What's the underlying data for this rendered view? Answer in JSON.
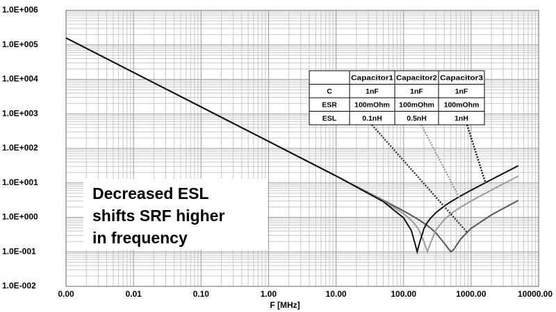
{
  "chart_data": {
    "type": "line",
    "x_label": "F [MHz]",
    "log_x": true,
    "log_y": true,
    "grid": true,
    "minor_grid": true,
    "xlim": [
      0.001,
      10000
    ],
    "ylim": [
      0.01,
      1000000
    ],
    "xticks": [
      {
        "value": 0.001,
        "label": "0.00"
      },
      0.01,
      {
        "value": 0.1,
        "label": "0.10"
      },
      {
        "value": 1,
        "label": "1.00"
      },
      {
        "value": 10,
        "label": "10.00"
      },
      {
        "value": 100,
        "label": "100.00"
      },
      {
        "value": 1000,
        "label": "1000.00"
      },
      {
        "value": 10000,
        "label": "10000.00"
      }
    ],
    "yticks": [
      {
        "value": 0.01,
        "label": "1.0E-002"
      },
      {
        "value": 0.1,
        "label": "1.0E-001"
      },
      {
        "value": 1,
        "label": "1.0E+000"
      },
      {
        "value": 10,
        "label": "1.0E+001"
      },
      {
        "value": 100,
        "label": "1.0E+002"
      },
      {
        "value": 1000,
        "label": "1.0E+003"
      },
      {
        "value": 10000,
        "label": "1.0E+004"
      },
      {
        "value": 100000,
        "label": "1.0E+005"
      },
      {
        "value": 1000000,
        "label": "1.0E+006"
      }
    ],
    "x": [
      0.001,
      0.01,
      0.1,
      1,
      10,
      50,
      100,
      130,
      150,
      159,
      170,
      200,
      225,
      250,
      300,
      400,
      500,
      550,
      700,
      1000,
      2000,
      5000
    ],
    "series": [
      {
        "color": "#555555",
        "values": [
          159155,
          15915,
          1592,
          159.2,
          15.9,
          3.15,
          1.53,
          1.15,
          0.972,
          0.907,
          0.835,
          0.678,
          0.575,
          0.49,
          0.357,
          0.178,
          0.1,
          0.115,
          0.235,
          0.48,
          1.18,
          3.11
        ]
      },
      {
        "color": "#999999",
        "values": [
          159155,
          15915,
          1592,
          159.2,
          15.9,
          3.03,
          1.28,
          0.822,
          0.598,
          0.511,
          0.414,
          0.196,
          0.1,
          0.179,
          0.424,
          0.865,
          1.257,
          1.44,
          1.97,
          2.98,
          6.2,
          15.68
        ]
      },
      {
        "color": "#111111",
        "values": [
          159155,
          15915,
          1592,
          159.2,
          15.85,
          2.87,
          0.968,
          0.419,
          0.155,
          0.1,
          0.166,
          0.472,
          0.714,
          0.939,
          1.358,
          2.12,
          2.83,
          3.17,
          4.17,
          6.12,
          12.49,
          31.4
        ]
      }
    ],
    "table": {
      "columns": [
        "Capacitor1",
        "Capacitor2",
        "Capacitor3"
      ],
      "rows": [
        {
          "label": "C",
          "values": [
            "1nF",
            "1nF",
            "1nF"
          ]
        },
        {
          "label": "ESR",
          "values": [
            "100mOhm",
            "100mOhm",
            "100mOhm"
          ]
        },
        {
          "label": "ESL",
          "values": [
            "0.1nH",
            "0.5nH",
            "1nH"
          ]
        }
      ]
    },
    "annotation": [
      "Decreased ESL",
      "shifts SRF higher",
      "in frequency"
    ]
  }
}
